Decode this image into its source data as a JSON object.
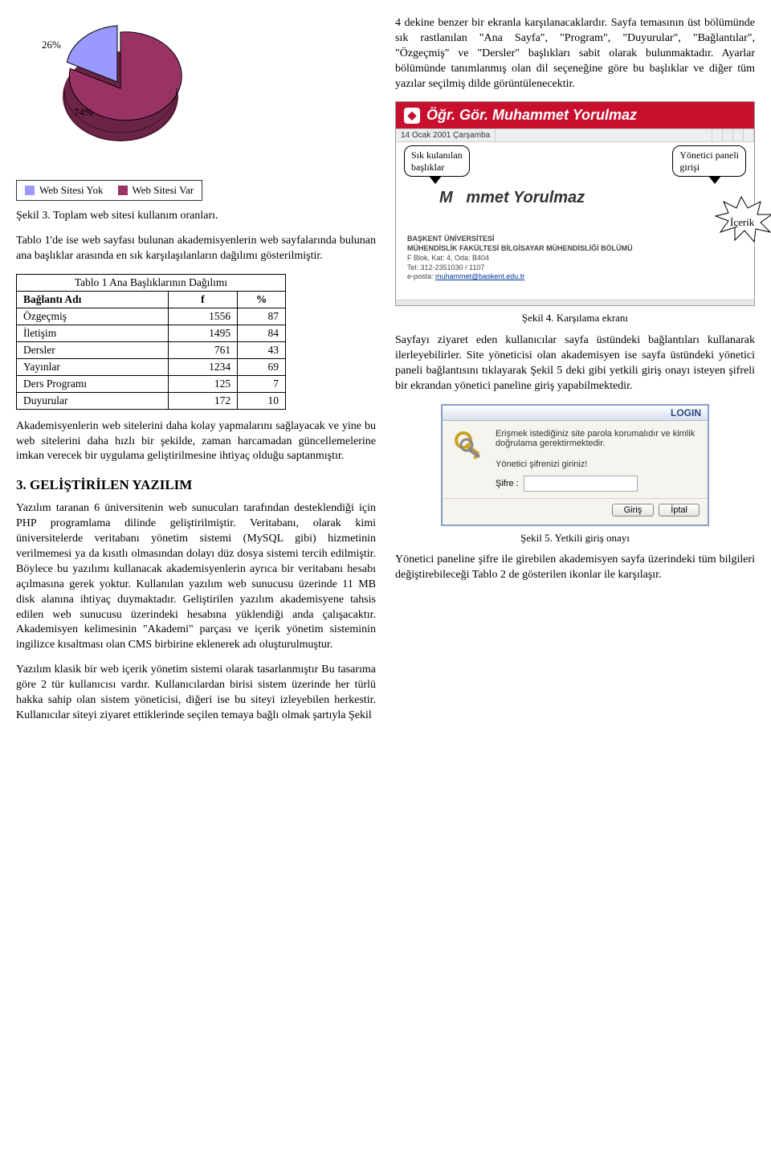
{
  "pie_chart": {
    "type": "pie",
    "background_color": "#ffffff",
    "slices": [
      {
        "label": "26%",
        "value": 26,
        "color": "#9999ff"
      },
      {
        "label": "74%",
        "value": 74,
        "color": "#993366"
      }
    ],
    "label_fontsize": 13,
    "border_color": "#000000",
    "border_width": 1
  },
  "legend": {
    "items": [
      {
        "label": "Web Sitesi Yok",
        "color": "#9999ff"
      },
      {
        "label": "Web Sitesi Var",
        "color": "#993366"
      }
    ],
    "border_color": "#333333",
    "fontsize": 13
  },
  "para1_top_right": "4 dekine benzer bir ekranla karşılanacaklardır. Sayfa temasının üst bölümünde sık rastlanılan \"Ana Sayfa\", \"Program\", \"Duyurular\", \"Bağlantılar\", \"Özgeçmiş\" ve \"Dersler\" başlıkları sabit olarak bulunmaktadır. Ayarlar bölümünde tanımlanmış olan dil seçeneğine göre bu başlıklar ve diğer tüm yazılar seçilmiş dilde görüntülenecektir.",
  "sekil3_caption": "Şekil 3. Toplam web sitesi kullanım oranları.",
  "para2_left": "Tablo 1'de ise web sayfası bulunan akademisyenlerin web sayfalarında bulunan ana başlıklar arasında en sık karşılaşılanların dağılımı gösterilmiştir.",
  "table1": {
    "type": "table",
    "title": "Tablo 1 Ana Başlıklarının Dağılımı",
    "columns": [
      "Bağlantı Adı",
      "f",
      "%"
    ],
    "rows": [
      [
        "Özgeçmiş",
        1556,
        87
      ],
      [
        "İletişim",
        1495,
        84
      ],
      [
        "Dersler",
        761,
        43
      ],
      [
        "Yayınlar",
        1234,
        69
      ],
      [
        "Ders Programı",
        125,
        7
      ],
      [
        "Duyurular",
        172,
        10
      ]
    ],
    "border_color": "#000000",
    "fontsize": 13.5
  },
  "para3_left": "Akademisyenlerin web sitelerini daha kolay yapmalarını sağlayacak ve yine bu web sitelerini daha hızlı bir şekilde, zaman harcamadan güncellemelerine imkan verecek bir uygulama geliştirilmesine ihtiyaç olduğu saptanmıştır.",
  "section3_heading": "3. GELİŞTİRİLEN YAZILIM",
  "para4_left": "Yazılım taranan 6 üniversitenin web sunucuları tarafından desteklendiği için PHP programlama dilinde geliştirilmiştir. Veritabanı, olarak kimi üniversitelerde veritabanı yönetim sistemi (MySQL gibi) hizmetinin verilmemesi ya da kısıtlı olmasından dolayı düz dosya sistemi tercih edilmiştir. Böylece bu yazılımı kullanacak akademisyenlerin ayrıca bir veritabanı hesabı açılmasına gerek yoktur. Kullanılan yazılım web sunucusu üzerinde 11 MB disk alanına ihtiyaç duymaktadır. Geliştirilen yazılım akademisyene tahsis edilen web sunucusu üzerindeki hesabına yüklendiği anda çalışacaktır. Akademisyen kelimesinin \"Akademi\" parçası ve içerik yönetim sisteminin ingilizce kısaltması olan CMS birbirine eklenerek adı oluşturulmuştur.",
  "para5_left": "Yazılım klasik bir web içerik yönetim sistemi olarak tasarlanmıştır Bu tasarıma göre 2 tür kullanıcısı vardır. Kullanıcılardan birisi sistem üzerinde her türlü hakka sahip olan sistem yöneticisi, diğeri ise bu siteyi izleyebilen herkestir. Kullanıcılar siteyi ziyaret ettiklerinde seçilen temaya bağlı olmak şartıyla Şekil",
  "screenshot1": {
    "colors": {
      "topbar_bg": "#c8102e",
      "topbar_text": "#ffffff",
      "datebar_bg": "#eeeeee",
      "body_bg": "#ffffff",
      "name_text": "#333333",
      "info_text": "#444444",
      "link_color": "#003399"
    },
    "topbar_title": "Öğr. Gör. Muhammet Yorulmaz",
    "date_text": "14 Ocak 2001 Çarşamba",
    "callout1": "Sık kulanılan\nbaşlıklar",
    "callout2": "Yönetici paneli\ngirişi",
    "burst_label": "İçerik",
    "display_name": "mmet Yorulmaz",
    "display_name_prefix": "M",
    "info_lines": [
      "BAŞKENT ÜNİVERSİTESİ",
      "MÜHENDİSLİK FAKÜLTESİ BİLGİSAYAR MÜHENDİSLİĞİ BÖLÜMÜ",
      "F Blok, Kat: 4, Oda: B404",
      "Tel: 312-2351030 / 1107",
      "e-posta: muhammet@baskent.edu.tr"
    ]
  },
  "sekil4_caption": "Şekil 4. Karşılama ekranı",
  "para6_right": "Sayfayı ziyaret eden kullanıcılar sayfa üstündeki bağlantıları kullanarak ilerleyebilirler. Site yöneticisi olan akademisyen ise sayfa üstündeki yönetici paneli bağlantısını tıklayarak Şekil 5 deki gibi yetkili giriş onayı isteyen şifreli bir ekrandan yönetici paneline giriş yapabilmektedir.",
  "login_dialog": {
    "colors": {
      "border": "#88a0c8",
      "title_gradient_from": "#ffffff",
      "title_gradient_to": "#d8e0ee",
      "title_text": "#2a4a80",
      "body_bg": "#f6f4ee",
      "input_border": "#a5acb2",
      "button_border": "#888888",
      "button_bg_from": "#ffffff",
      "button_bg_to": "#e4e4e0"
    },
    "title": "LOGIN",
    "message": "Erişmek istediğiniz site parola korumalıdır ve kimlik doğrulama gerektirmektedir.",
    "prompt": "Yönetici şifrenizi giriniz!",
    "field_label": "Şifre :",
    "buttons": [
      "Giriş",
      "İptal"
    ]
  },
  "sekil5_caption": "Şekil 5. Yetkili giriş onayı",
  "para7_right": "Yönetici paneline şifre ile girebilen akademisyen sayfa üzerindeki tüm bilgileri değiştirebileceği Tablo 2 de gösterilen ikonlar ile karşılaşır."
}
